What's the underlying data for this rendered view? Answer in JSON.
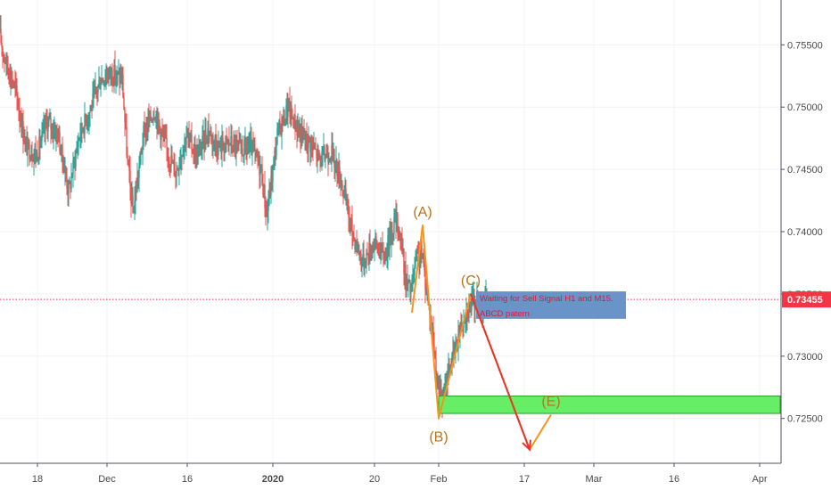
{
  "chart_data": {
    "type": "candlestick",
    "title": "",
    "xlabel": "",
    "ylabel": "",
    "x_range": [
      "2019-11-11",
      "2020-04-05"
    ],
    "ylim": [
      0.7214,
      0.7586
    ],
    "x_ticks": [
      {
        "date": "2019-11-18",
        "label": "18",
        "bold": false
      },
      {
        "date": "2019-12-01",
        "label": "Dec",
        "bold": false
      },
      {
        "date": "2019-12-16",
        "label": "16",
        "bold": false
      },
      {
        "date": "2020-01-01",
        "label": "2020",
        "bold": true
      },
      {
        "date": "2020-01-20",
        "label": "20",
        "bold": false
      },
      {
        "date": "2020-02-01",
        "label": "Feb",
        "bold": false
      },
      {
        "date": "2020-02-17",
        "label": "17",
        "bold": false
      },
      {
        "date": "2020-03-01",
        "label": "Mar",
        "bold": false
      },
      {
        "date": "2020-03-16",
        "label": "16",
        "bold": false
      },
      {
        "date": "2020-04-01",
        "label": "Apr",
        "bold": false
      }
    ],
    "y_ticks": [
      0.725,
      0.73,
      0.735,
      0.74,
      0.745,
      0.75,
      0.755
    ],
    "y_tick_labels": [
      "0.72500",
      "0.73000",
      "0.73500",
      "0.74000",
      "0.74500",
      "0.75000",
      "0.75500"
    ],
    "grid": true,
    "current_price": {
      "value": 0.73455,
      "label": "0.73455",
      "color": "#f23645"
    },
    "price_keypoints": [
      [
        "2019-11-11",
        0.756
      ],
      [
        "2019-11-12",
        0.754
      ],
      [
        "2019-11-14",
        0.7515
      ],
      [
        "2019-11-16",
        0.7468
      ],
      [
        "2019-11-18",
        0.7462
      ],
      [
        "2019-11-20",
        0.7488
      ],
      [
        "2019-11-22",
        0.7478
      ],
      [
        "2019-11-24",
        0.7432
      ],
      [
        "2019-11-26",
        0.7478
      ],
      [
        "2019-11-28",
        0.7498
      ],
      [
        "2019-11-30",
        0.7523
      ],
      [
        "2019-12-02",
        0.7528
      ],
      [
        "2019-12-04",
        0.7522
      ],
      [
        "2019-12-05",
        0.7455
      ],
      [
        "2019-12-06",
        0.7415
      ],
      [
        "2019-12-08",
        0.7478
      ],
      [
        "2019-12-10",
        0.7498
      ],
      [
        "2019-12-12",
        0.747
      ],
      [
        "2019-12-14",
        0.7448
      ],
      [
        "2019-12-16",
        0.7478
      ],
      [
        "2019-12-18",
        0.746
      ],
      [
        "2019-12-20",
        0.7482
      ],
      [
        "2019-12-22",
        0.7468
      ],
      [
        "2019-12-24",
        0.7472
      ],
      [
        "2019-12-26",
        0.7465
      ],
      [
        "2019-12-28",
        0.7468
      ],
      [
        "2019-12-30",
        0.745
      ],
      [
        "2019-12-31",
        0.7412
      ],
      [
        "2020-01-02",
        0.7478
      ],
      [
        "2020-01-04",
        0.75
      ],
      [
        "2020-01-06",
        0.748
      ],
      [
        "2020-01-08",
        0.7472
      ],
      [
        "2020-01-10",
        0.7458
      ],
      [
        "2020-01-12",
        0.7465
      ],
      [
        "2020-01-14",
        0.744
      ],
      [
        "2020-01-16",
        0.74
      ],
      [
        "2020-01-18",
        0.7375
      ],
      [
        "2020-01-20",
        0.7392
      ],
      [
        "2020-01-22",
        0.738
      ],
      [
        "2020-01-24",
        0.741
      ],
      [
        "2020-01-25",
        0.7398
      ],
      [
        "2020-01-26",
        0.736
      ],
      [
        "2020-01-27",
        0.7352
      ],
      [
        "2020-01-28",
        0.7378
      ],
      [
        "2020-01-29",
        0.7382
      ],
      [
        "2020-01-30",
        0.735
      ],
      [
        "2020-01-31",
        0.732
      ],
      [
        "2020-02-01",
        0.7275
      ],
      [
        "2020-02-02",
        0.7262
      ],
      [
        "2020-02-03",
        0.729
      ],
      [
        "2020-02-04",
        0.73
      ],
      [
        "2020-02-05",
        0.732
      ],
      [
        "2020-02-06",
        0.7335
      ],
      [
        "2020-02-07",
        0.734
      ],
      [
        "2020-02-08",
        0.7345
      ],
      [
        "2020-02-09",
        0.734
      ],
      [
        "2020-02-10",
        0.7345
      ]
    ],
    "abcd_pattern": {
      "color": "#f7931a",
      "points": [
        {
          "label": "",
          "date": "2020-01-27",
          "price": 0.7335
        },
        {
          "label": "(A)",
          "date": "2020-01-29",
          "price": 0.7405
        },
        {
          "label": "(B)",
          "date": "2020-02-01",
          "price": 0.725
        },
        {
          "label": "(C)",
          "date": "2020-02-07",
          "price": 0.735
        },
        {
          "label": "",
          "date": "2020-02-18",
          "price": 0.7225
        },
        {
          "label": "(E)",
          "date": "2020-02-22",
          "price": 0.7253
        }
      ]
    },
    "projection_arrow": {
      "color": "#e8342a",
      "from": {
        "date": "2020-02-07",
        "price": 0.735
      },
      "to": {
        "date": "2020-02-18",
        "price": 0.7225
      }
    },
    "support_zone": {
      "color": "#66ee66",
      "border": "#2e9e2e",
      "x_start": "2020-02-01",
      "y_top": 0.7268,
      "y_bottom": 0.7254
    },
    "annotation_box": {
      "color": "#6a93c8",
      "text_color": "#d81b3a",
      "x_start": "2020-02-08",
      "x_end": "2020-03-07",
      "y_top": 0.7352,
      "y_bottom": 0.733,
      "lines": [
        "Waiting for Sell Signal H1 and M15.",
        "ABCD patern"
      ]
    }
  }
}
